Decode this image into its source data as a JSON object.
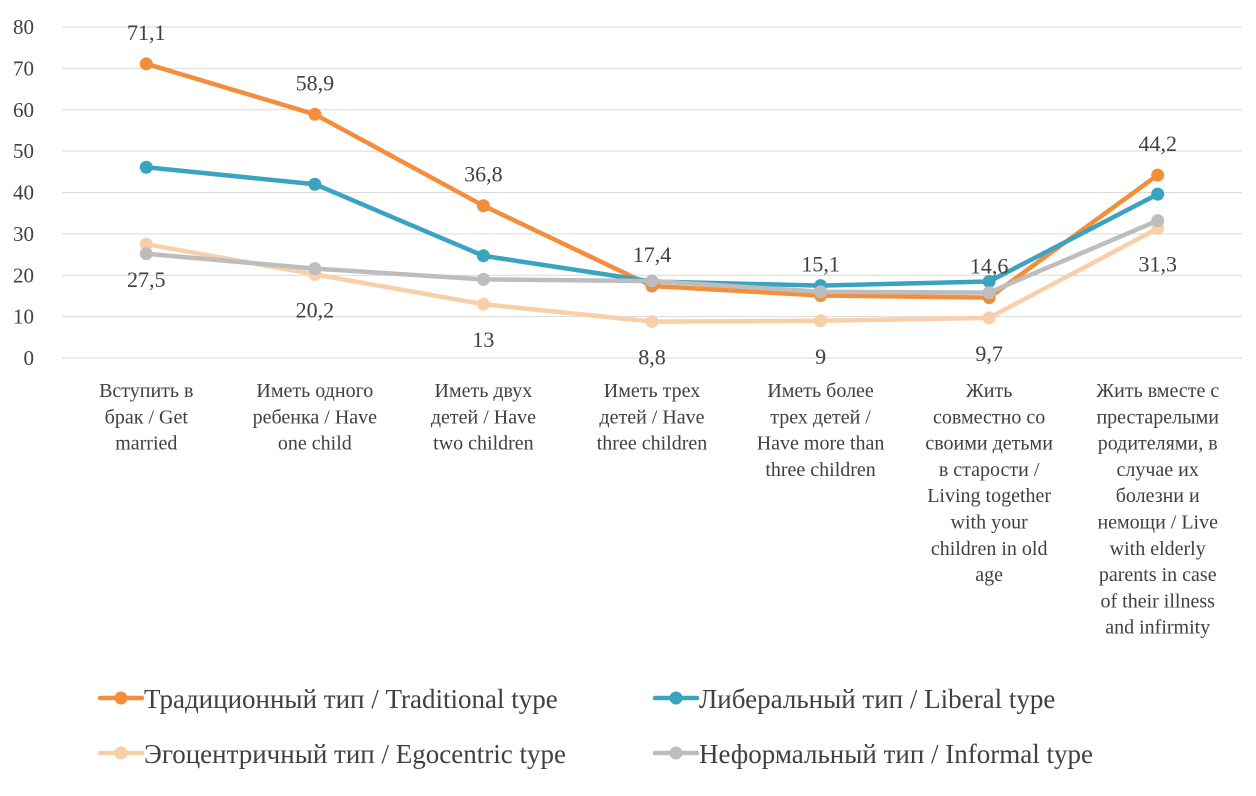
{
  "chart_data": {
    "type": "line",
    "ylim": [
      0,
      80
    ],
    "yticks": [
      "0",
      "10",
      "20",
      "30",
      "40",
      "50",
      "60",
      "70",
      "80"
    ],
    "grid": true,
    "legend_position": "bottom",
    "categories": [
      [
        "Вступить в",
        "брак / Get",
        "married"
      ],
      [
        "Иметь одного",
        "ребенка / Have",
        "one child"
      ],
      [
        "Иметь двух",
        "детей / Have",
        "two children"
      ],
      [
        "Иметь трех",
        "детей / Have",
        "three children"
      ],
      [
        "Иметь более",
        "трех детей /",
        "Have more than",
        "three children"
      ],
      [
        "Жить",
        "совместно со",
        "своими детьми",
        "в старости /",
        "Living together",
        "with your",
        "children in old",
        "age"
      ],
      [
        "Жить вместе с",
        "престарелыми",
        "родителями, в",
        "случае их",
        "болезни и",
        "немощи / Live",
        "with elderly",
        "parents in case",
        "of their illness",
        "and infirmity"
      ]
    ],
    "series": [
      {
        "name": "Традиционный тип / Traditional type",
        "color": "#F28E3C",
        "values": [
          71.1,
          58.9,
          36.8,
          17.4,
          15.1,
          14.6,
          44.2
        ],
        "labels": [
          "71,1",
          "58,9",
          "36,8",
          "17,4",
          "15,1",
          "14,6",
          "44,2"
        ]
      },
      {
        "name": "Либеральный тип / Liberal type",
        "color": "#3AA3BF",
        "values": [
          46.1,
          42.0,
          24.7,
          18.5,
          17.5,
          18.5,
          39.6
        ],
        "labels": []
      },
      {
        "name": "Эгоцентричный тип / Egocentric type",
        "color": "#F9CFA9",
        "values": [
          27.5,
          20.2,
          13,
          8.8,
          9,
          9.7,
          31.3
        ],
        "labels": [
          "27,5",
          "20,2",
          "13",
          "8,8",
          "9",
          "9,7",
          "31,3"
        ]
      },
      {
        "name": "Неформальный тип / Informal type",
        "color": "#BDBDBD",
        "values": [
          25.2,
          21.6,
          19.0,
          18.6,
          16.0,
          15.8,
          33.2
        ],
        "labels": []
      }
    ]
  }
}
